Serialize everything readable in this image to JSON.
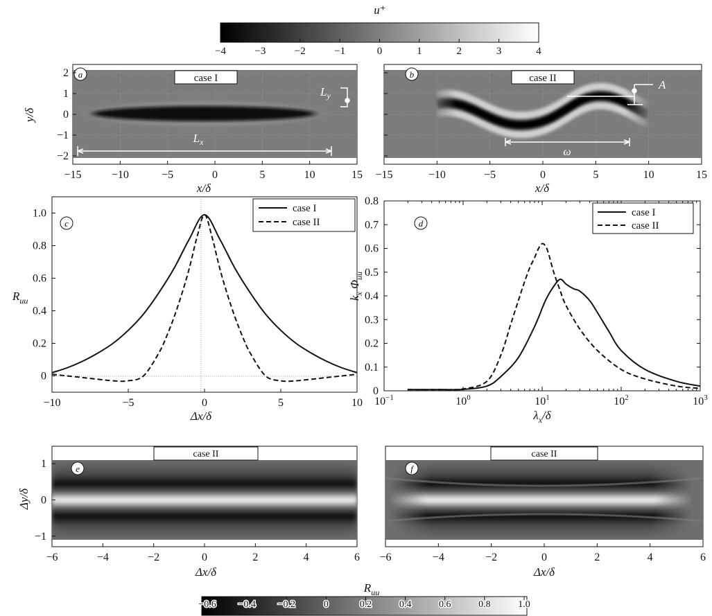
{
  "chart_data": [
    {
      "panel": "colorbar-top",
      "type": "heatmap",
      "title": "u⁺",
      "range": [
        -4,
        4
      ],
      "ticks": [
        "−4",
        "−3",
        "−2",
        "−1",
        "0",
        "1",
        "2",
        "3",
        "4"
      ]
    },
    {
      "panel": "a",
      "type": "heatmap",
      "label": "case I",
      "xlabel": "x/δ",
      "ylabel": "y/δ",
      "xlim": [
        -15,
        15
      ],
      "ylim": [
        -2.4,
        2.4
      ],
      "xticks": [
        "−15",
        "−10",
        "−5",
        "0",
        "5",
        "10",
        "15"
      ],
      "yticks": [
        "−2",
        "−1",
        "0",
        "1",
        "2"
      ],
      "annotations": [
        "L_x",
        "L_y"
      ],
      "streak": {
        "center_x": 0,
        "center_y": 0,
        "half_length": 12.5,
        "half_width": 0.35,
        "amplitude": -4
      }
    },
    {
      "panel": "b",
      "type": "heatmap",
      "label": "case II",
      "xlabel": "x/δ",
      "xlim": [
        -15,
        15
      ],
      "ylim": [
        -2.4,
        2.4
      ],
      "xticks": [
        "−15",
        "−10",
        "−5",
        "0",
        "5",
        "10",
        "15"
      ],
      "annotations": [
        "A",
        "ω"
      ],
      "streak": {
        "center_x": 0,
        "half_length": 10,
        "half_width": 0.3,
        "meander_amplitude": 0.5,
        "wavelength": 12,
        "amplitude": -4
      }
    },
    {
      "panel": "c",
      "type": "line",
      "xlabel": "Δx/δ",
      "ylabel": "R_uu",
      "xlim": [
        -10,
        10
      ],
      "ylim": [
        -0.1,
        1.1
      ],
      "xticks": [
        "−10",
        "−5",
        "0",
        "5",
        "10"
      ],
      "yticks": [
        "0",
        "0.2",
        "0.4",
        "0.6",
        "0.8",
        "1.0"
      ],
      "series": [
        {
          "name": "case I",
          "style": "solid",
          "x": [
            -10,
            -9,
            -8,
            -7,
            -6,
            -5,
            -4,
            -3,
            -2,
            -1,
            0,
            1,
            2,
            3,
            4,
            5,
            6,
            7,
            8,
            9,
            10
          ],
          "y": [
            0.02,
            0.05,
            0.09,
            0.14,
            0.2,
            0.28,
            0.38,
            0.51,
            0.66,
            0.84,
            0.99,
            0.84,
            0.66,
            0.51,
            0.38,
            0.28,
            0.2,
            0.14,
            0.09,
            0.05,
            0.02
          ]
        },
        {
          "name": "case II",
          "style": "dashed",
          "x": [
            -10,
            -8,
            -6,
            -5,
            -4,
            -3,
            -2.5,
            -2,
            -1.5,
            -1,
            -0.5,
            0,
            0.5,
            1,
            1.5,
            2,
            2.5,
            3,
            4,
            5,
            6,
            8,
            10
          ],
          "y": [
            0.01,
            -0.01,
            -0.03,
            -0.03,
            0.0,
            0.14,
            0.24,
            0.36,
            0.5,
            0.66,
            0.85,
            0.99,
            0.85,
            0.66,
            0.5,
            0.36,
            0.24,
            0.14,
            0.0,
            -0.03,
            -0.03,
            -0.01,
            0.01
          ]
        }
      ]
    },
    {
      "panel": "d",
      "type": "line",
      "xlabel": "λ_x/δ",
      "ylabel": "k_x Φ_uu",
      "xscale": "log",
      "xlim": [
        0.1,
        1000
      ],
      "ylim": [
        0,
        0.8
      ],
      "xticks": [
        "10",
        "10",
        "10",
        "10",
        "10"
      ],
      "xtick_exponents": [
        "−1",
        "0",
        "1",
        "2",
        "3"
      ],
      "yticks": [
        "0",
        "0.1",
        "0.2",
        "0.3",
        "0.4",
        "0.5",
        "0.6",
        "0.7",
        "0.8"
      ],
      "series": [
        {
          "name": "case I",
          "style": "solid",
          "x": [
            0.2,
            0.5,
            1,
            2,
            3,
            5,
            8,
            11,
            14,
            17,
            20,
            25,
            30,
            40,
            50,
            70,
            100,
            200,
            500,
            1000
          ],
          "y": [
            0.005,
            0.005,
            0.006,
            0.02,
            0.06,
            0.14,
            0.27,
            0.38,
            0.44,
            0.47,
            0.45,
            0.43,
            0.42,
            0.38,
            0.33,
            0.25,
            0.17,
            0.09,
            0.04,
            0.02
          ]
        },
        {
          "name": "case II",
          "style": "dashed",
          "x": [
            0.2,
            0.5,
            1,
            2,
            3,
            4,
            5,
            6,
            7,
            8,
            9,
            10,
            11,
            12,
            14,
            17,
            20,
            30,
            50,
            100,
            200,
            500,
            1000
          ],
          "y": [
            0.005,
            0.005,
            0.008,
            0.04,
            0.15,
            0.28,
            0.38,
            0.46,
            0.52,
            0.56,
            0.6,
            0.62,
            0.61,
            0.58,
            0.5,
            0.42,
            0.36,
            0.26,
            0.17,
            0.09,
            0.05,
            0.02,
            0.01
          ]
        }
      ]
    },
    {
      "panel": "e",
      "type": "heatmap",
      "label": "case II",
      "xlabel": "Δx/δ",
      "ylabel": "Δy/δ",
      "xlim": [
        -6,
        6
      ],
      "ylim": [
        -1.1,
        1.1
      ],
      "xticks": [
        "−6",
        "−4",
        "−2",
        "0",
        "2",
        "4",
        "6"
      ],
      "yticks": [
        "−1",
        "0",
        "1"
      ]
    },
    {
      "panel": "f",
      "type": "heatmap",
      "label": "case II",
      "xlabel": "Δx/δ",
      "xlim": [
        -6,
        6
      ],
      "ylim": [
        -1.1,
        1.1
      ],
      "xticks": [
        "−6",
        "−4",
        "−2",
        "0",
        "2",
        "4",
        "6"
      ]
    },
    {
      "panel": "colorbar-bottom",
      "type": "heatmap",
      "title": "R_uu",
      "range": [
        -0.6,
        1.0
      ],
      "ticks": [
        "−0.6",
        "−0.4",
        "−0.2",
        "0",
        "0.2",
        "0.4",
        "0.6",
        "0.8",
        "1.0"
      ]
    }
  ]
}
